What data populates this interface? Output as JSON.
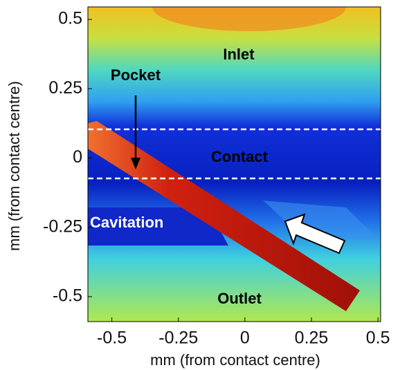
{
  "chart_data": {
    "type": "image",
    "xlabel": "mm (from contact centre)",
    "ylabel": "mm (from contact centre)",
    "xlim": [
      -0.59,
      0.51
    ],
    "ylim": [
      -0.59,
      0.545
    ],
    "xticks": [
      -0.5,
      -0.25,
      0,
      0.25,
      0.5
    ],
    "yticks": [
      0.5,
      0.25,
      0,
      -0.25,
      -0.5
    ],
    "annotations": [
      "Inlet",
      "Pocket",
      "Contact",
      "Cavitation",
      "Outlet"
    ]
  }
}
